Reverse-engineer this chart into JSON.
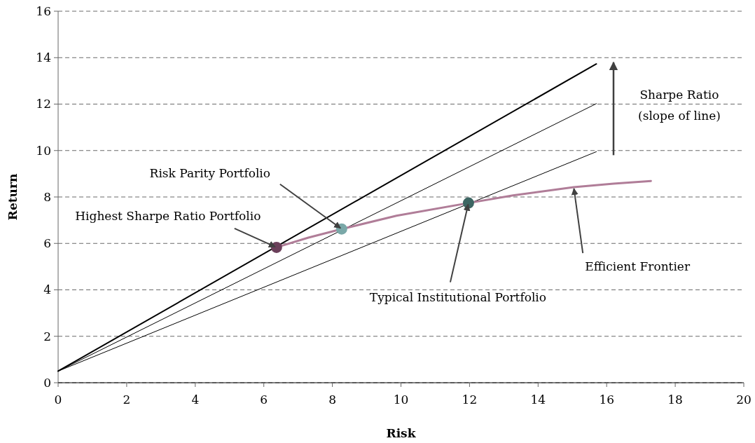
{
  "chart_data": {
    "type": "line",
    "xlabel": "Risk",
    "ylabel": "Return",
    "xlim": [
      0,
      20
    ],
    "ylim": [
      0,
      16
    ],
    "xticks": [
      0,
      2,
      4,
      6,
      8,
      10,
      12,
      14,
      16,
      18,
      20
    ],
    "yticks": [
      0,
      2,
      4,
      6,
      8,
      10,
      12,
      14,
      16
    ],
    "grid": "y",
    "series": [
      {
        "color": "#000000",
        "x": [
          0,
          15.7
        ],
        "values": [
          0.5,
          13.73
        ]
      },
      {
        "color": "#000000",
        "x": [
          0,
          15.7
        ],
        "values": [
          0.5,
          12.02
        ]
      },
      {
        "color": "#000000",
        "x": [
          0,
          15.7
        ],
        "values": [
          0.5,
          9.95
        ]
      },
      {
        "color": "#b07d98",
        "x": [
          6.37,
          7.3,
          8.27,
          9.87,
          11.97,
          13.27,
          15.04,
          16.2,
          17.29
        ],
        "values": [
          5.83,
          6.25,
          6.62,
          7.19,
          7.74,
          8.07,
          8.42,
          8.57,
          8.69
        ]
      },
      {
        "type": "scatter",
        "marker": "circle",
        "colors": [
          "#6b3f5a",
          "#7aa8a8",
          "#3d6663"
        ],
        "x": [
          6.37,
          8.27,
          11.97
        ],
        "values": [
          5.83,
          6.62,
          7.74
        ]
      }
    ],
    "annotations": [
      {
        "text": "Highest Sharpe Ratio Portfolio",
        "x": 6.37,
        "y": 5.83
      },
      {
        "text": "Risk Parity Portfolio",
        "x": 8.27,
        "y": 6.62
      },
      {
        "text": "Typical Institutional Portfolio",
        "x": 11.97,
        "y": 7.74
      },
      {
        "text": "Efficient Frontier",
        "x": 15.04,
        "y": 8.42
      },
      "Sharpe Ratio",
      "(slope of line)"
    ]
  }
}
